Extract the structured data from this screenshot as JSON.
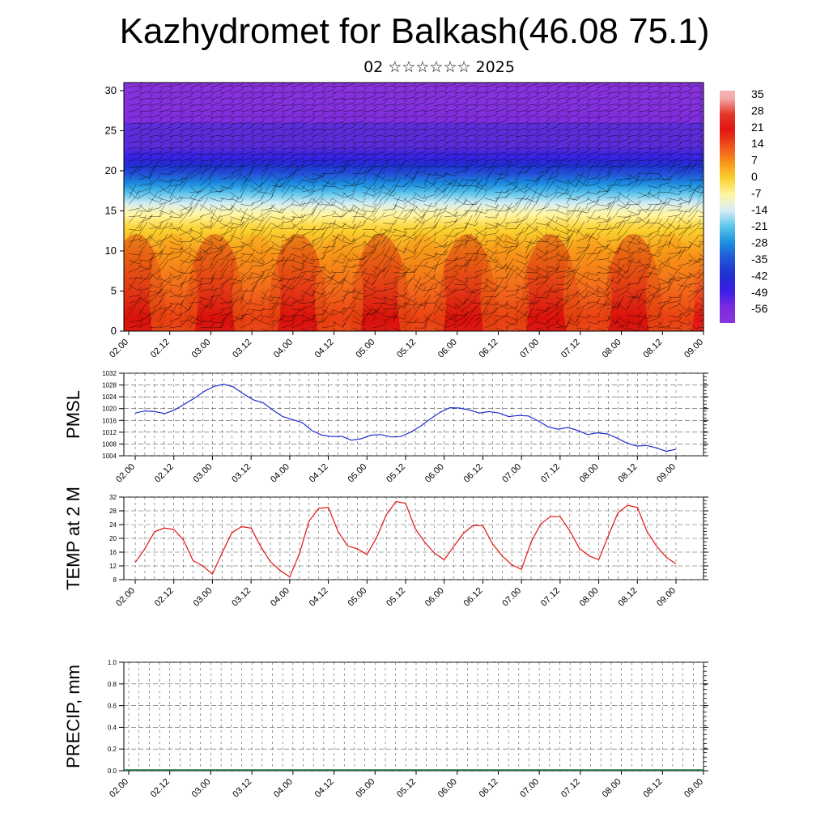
{
  "title": "Kazhydromet for Balkash(46.08 75.1)",
  "subtitle": "02 ☆☆☆☆☆☆ 2025",
  "time_labels": [
    "02.00",
    "02.12",
    "03.00",
    "03.12",
    "04.00",
    "04.12",
    "05.00",
    "05.12",
    "06.00",
    "06.12",
    "07.00",
    "07.12",
    "08.00",
    "08.12",
    "09.00"
  ],
  "chart_data": [
    {
      "type": "heatmap",
      "name": "temperature-wind-cross-section",
      "y_ticks": [
        0,
        5,
        10,
        15,
        20,
        25,
        30
      ],
      "ylim": [
        0,
        31
      ],
      "colorbar": {
        "labels": [
          "35",
          "28",
          "21",
          "14",
          "7",
          "0",
          "-7",
          "-14",
          "-21",
          "-28",
          "-35",
          "-42",
          "-49",
          "-56"
        ]
      },
      "palette": [
        {
          "v": 35,
          "c": "#f4b0b0"
        },
        {
          "v": 28,
          "c": "#e43a2a"
        },
        {
          "v": 21,
          "c": "#e3140f"
        },
        {
          "v": 14,
          "c": "#f0501e"
        },
        {
          "v": 7,
          "c": "#f79218"
        },
        {
          "v": 0,
          "c": "#fbd02e"
        },
        {
          "v": -7,
          "c": "#fff6a0"
        },
        {
          "v": -14,
          "c": "#d8eef6"
        },
        {
          "v": -21,
          "c": "#5cc6ec"
        },
        {
          "v": -28,
          "c": "#1a8fe0"
        },
        {
          "v": -35,
          "c": "#2256d8"
        },
        {
          "v": -42,
          "c": "#1f2fcf"
        },
        {
          "v": -49,
          "c": "#3a1ee8"
        },
        {
          "v": -56,
          "c": "#7a2ce0"
        },
        {
          "v": -63,
          "c": "#8a34dc"
        }
      ],
      "profile": [
        {
          "h": 0,
          "t": 24
        },
        {
          "h": 5,
          "t": 14
        },
        {
          "h": 10,
          "t": 6
        },
        {
          "h": 13,
          "t": -1
        },
        {
          "h": 15,
          "t": -9
        },
        {
          "h": 17,
          "t": -20
        },
        {
          "h": 19,
          "t": -32
        },
        {
          "h": 21,
          "t": -44
        },
        {
          "h": 23,
          "t": -56
        },
        {
          "h": 25,
          "t": -57
        },
        {
          "h": 28,
          "t": -60
        },
        {
          "h": 31,
          "t": -62
        }
      ]
    },
    {
      "type": "line",
      "ylabel": "PMSL",
      "ylim": [
        1004,
        1032
      ],
      "y_ticks": [
        1004,
        1008,
        1012,
        1016,
        1020,
        1024,
        1028,
        1032
      ],
      "color": "#1f2fcf",
      "values": [
        1018.5,
        1019.2,
        1019.0,
        1018.3,
        1019.5,
        1021.5,
        1023.5,
        1025.8,
        1027.5,
        1028.3,
        1027.3,
        1025.0,
        1023.0,
        1022.0,
        1019.5,
        1017.3,
        1016.3,
        1015.2,
        1012.5,
        1011.0,
        1010.5,
        1010.6,
        1009.3,
        1009.8,
        1011.0,
        1011.2,
        1010.4,
        1010.5,
        1012.0,
        1014.0,
        1016.5,
        1018.7,
        1020.3,
        1020.2,
        1019.5,
        1018.5,
        1019.0,
        1018.5,
        1017.3,
        1017.7,
        1017.5,
        1015.8,
        1013.8,
        1013.0,
        1013.6,
        1012.6,
        1011.2,
        1011.8,
        1011.4,
        1010.0,
        1008.3,
        1007.3,
        1007.5,
        1006.7,
        1005.5,
        1006.2
      ]
    },
    {
      "type": "line",
      "ylabel": "TEMP at 2 M",
      "ylim": [
        8,
        32
      ],
      "y_ticks": [
        8,
        12,
        16,
        20,
        24,
        28,
        32
      ],
      "color": "#e3140f",
      "values": [
        13,
        17,
        21.9,
        23,
        22.6,
        19.5,
        13.5,
        12,
        9.6,
        15.8,
        21.6,
        23.4,
        23,
        17.6,
        13.2,
        10.7,
        8.8,
        15.5,
        25,
        28.7,
        29,
        22,
        17.8,
        17,
        15.3,
        20.2,
        26.8,
        30.7,
        30.2,
        22.8,
        18.8,
        15.7,
        13.8,
        17.7,
        21.5,
        23.8,
        23.7,
        18.4,
        14.9,
        12.3,
        11,
        19,
        24.2,
        26.3,
        26.3,
        22.2,
        17.1,
        14.9,
        13.8,
        20.8,
        27.5,
        29.6,
        29,
        22,
        17.7,
        14.5,
        12.6
      ]
    },
    {
      "type": "bar",
      "ylabel": "PRECIP, mm",
      "ylim": [
        0,
        1
      ],
      "y_ticks": [
        "0.0",
        "0.2",
        "0.4",
        "0.6",
        "0.8",
        "1.0"
      ],
      "values": [
        0,
        0,
        0,
        0,
        0,
        0,
        0,
        0,
        0,
        0,
        0,
        0,
        0,
        0,
        0,
        0,
        0,
        0,
        0,
        0,
        0,
        0,
        0,
        0,
        0,
        0,
        0,
        0,
        0,
        0,
        0,
        0,
        0,
        0,
        0,
        0,
        0,
        0,
        0,
        0,
        0,
        0,
        0,
        0,
        0,
        0,
        0,
        0,
        0,
        0,
        0,
        0,
        0,
        0,
        0,
        0,
        0
      ]
    }
  ]
}
